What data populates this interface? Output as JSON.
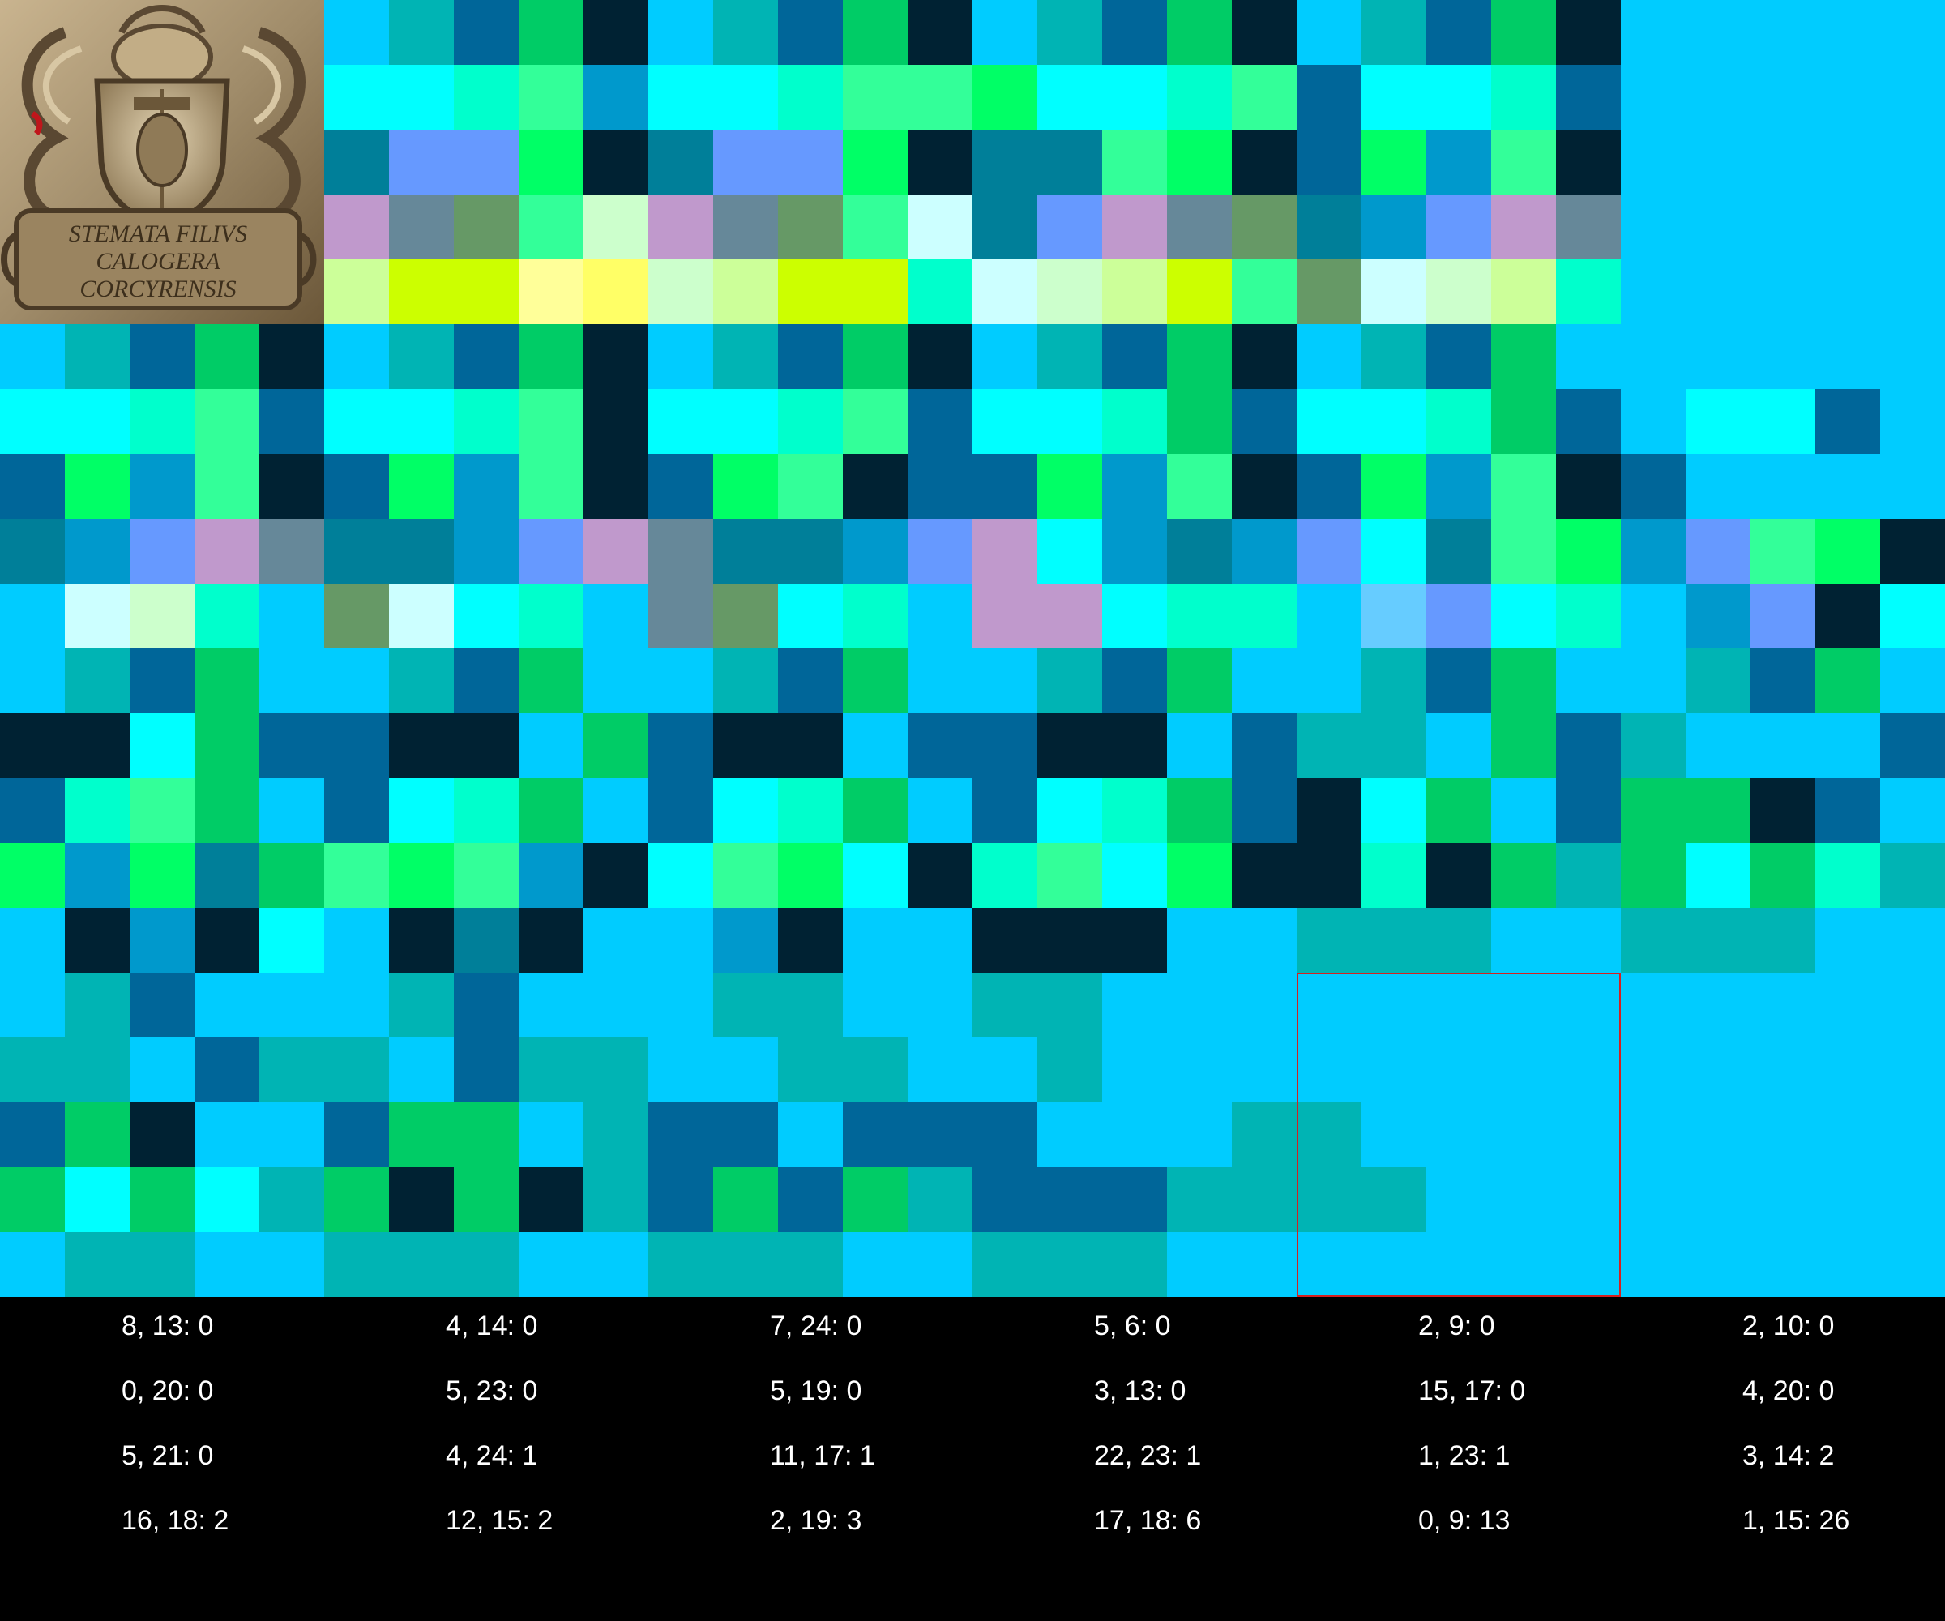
{
  "palette": {
    "a": "#00ccff",
    "b": "#00b4b4",
    "c": "#006699",
    "d": "#00cc66",
    "e": "#002233",
    "f": "#00ffff",
    "g": "#00ffcc",
    "h": "#33ff99",
    "i": "#00ff66",
    "j": "#0099cc",
    "k": "#66ccff",
    "l": "#007f99",
    "m": "#6699ff",
    "n": "#c099cc",
    "o": "#668899",
    "p": "#669966",
    "q": "#ccffff",
    "r": "#ccffcc",
    "s": "#ccff99",
    "t": "#ccff00",
    "u": "#ffff99",
    "v": "#ffff66",
    "w": "#ffffcc"
  },
  "grid_rows": [
    "aacdeabcdeabcdeabcdeabcde",
    "ffghjffghjffghhiffghcffgc",
    "ljmielmmielmmiellhiecijhe",
    "nophrnophrnophqlmnopljmno",
    "sttuvsttuvrsttgqrsthpqrsg",
    "abcdeabcdeabcdeabcdeabcda",
    "ffghcffgheffghcffgdcffgdcaffc",
    "cijhecijheciheccijhecijheca",
    "ljmnolljmnolljmnfjljmflhijmhiel",
    "aqrgapqfgaopfgannfggakmfgajmef",
    "abcdaabcdaabcdaabcdaabcdaabcda",
    "eefdcceeadceeacceeacbbadcbaaacc",
    "cghdacfgdacfgdacfgdcefdacddecaa",
    "ijildhihjefhifeghfieegedbdfdgbb",
    "aejefaeleaajeaaeeeaabbbaabbba",
    "abcaaabcaaabbaabbaaaaaaaaaaa",
    "bbacbbacbbaabbaabaaaaaaaaaaaa",
    "cdeaacddabccacccaaabbaaaaaaa",
    "dfdfbdedebcdcdbcccbbbbaaaaaa",
    "abbaabbbaabbbaabbbaaaaaaaaaa"
  ],
  "legend": [
    "8, 13: 0",
    "4, 14: 0",
    "7, 24: 0",
    "5, 6: 0",
    "2, 9: 0",
    "2, 10: 0",
    "0, 20: 0",
    "5, 23: 0",
    "5, 19: 0",
    "3, 13: 0",
    "15, 17: 0",
    "4, 20: 0",
    "5, 21: 0",
    "4, 24: 1",
    "11, 17: 1",
    "22, 23: 1",
    "1, 23: 1",
    "3, 14: 2",
    "16, 18: 2",
    "12, 15: 2",
    "2, 19: 3",
    "17, 18: 6",
    "0, 9: 13",
    "1, 15: 26"
  ],
  "highlight_color": "#d52020",
  "thumbnail": {
    "inscription_lines": [
      "STEMATA FILIVS",
      "CALOGERA",
      "CORCYRENSIS"
    ],
    "colors": {
      "stone": "#a08c6a",
      "stone_dark": "#5a4832",
      "stone_light": "#d8c7a4",
      "red_mark": "#c0161b"
    }
  }
}
